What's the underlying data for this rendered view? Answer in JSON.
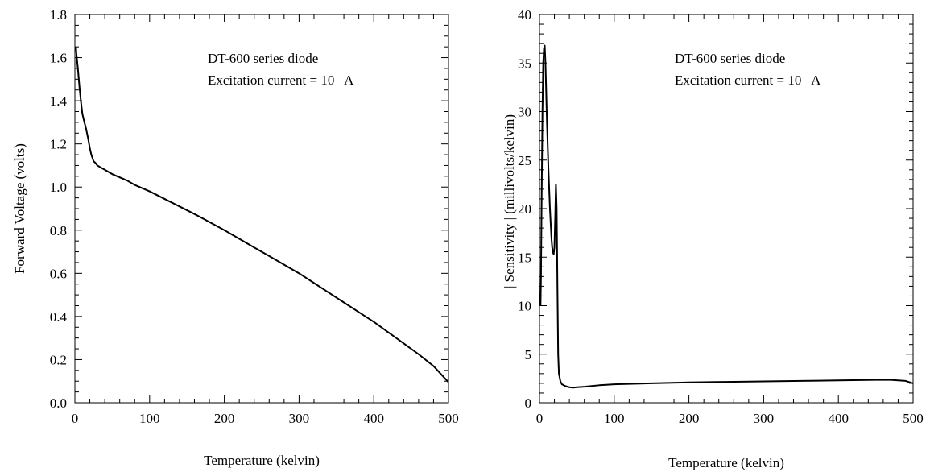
{
  "chart_data": [
    {
      "type": "line",
      "title": "",
      "xlabel": "Temperature (kelvin)",
      "ylabel": "Forward Voltage (volts)",
      "xlim": [
        0,
        500
      ],
      "ylim": [
        0,
        1.8
      ],
      "xticks": [
        "0",
        "100",
        "200",
        "300",
        "400",
        "500"
      ],
      "yticks": [
        "0.0",
        "0.2",
        "0.4",
        "0.6",
        "0.8",
        "1.0",
        "1.2",
        "1.4",
        "1.6",
        "1.8"
      ],
      "grid": false,
      "annotations": [
        "DT-600 series diode",
        "Excitation current = 10   A"
      ],
      "series": [
        {
          "x": [
            1.4,
            2,
            4,
            6,
            8,
            10,
            12,
            15,
            18,
            20,
            22,
            24,
            25,
            28,
            30,
            40,
            50,
            60,
            70,
            80,
            90,
            100,
            120,
            140,
            160,
            180,
            200,
            220,
            240,
            260,
            280,
            300,
            320,
            340,
            360,
            380,
            400,
            420,
            440,
            460,
            480,
            500
          ],
          "y": [
            1.65,
            1.62,
            1.55,
            1.47,
            1.4,
            1.34,
            1.31,
            1.27,
            1.22,
            1.18,
            1.15,
            1.13,
            1.12,
            1.11,
            1.1,
            1.08,
            1.06,
            1.045,
            1.03,
            1.01,
            0.995,
            0.98,
            0.945,
            0.91,
            0.875,
            0.838,
            0.8,
            0.76,
            0.72,
            0.68,
            0.64,
            0.6,
            0.555,
            0.51,
            0.465,
            0.42,
            0.375,
            0.325,
            0.275,
            0.225,
            0.17,
            0.095
          ]
        }
      ]
    },
    {
      "type": "line",
      "title": "",
      "xlabel": "Temperature (kelvin)",
      "ylabel": "| Sensitivity | (millivolts/kelvin)",
      "xlim": [
        0,
        500
      ],
      "ylim": [
        0,
        40
      ],
      "xticks": [
        "0",
        "100",
        "200",
        "300",
        "400",
        "500"
      ],
      "yticks": [
        "0",
        "5",
        "10",
        "15",
        "20",
        "25",
        "30",
        "35",
        "40"
      ],
      "grid": false,
      "annotations": [
        "DT-600 series diode",
        "Excitation current = 10   A"
      ],
      "series": [
        {
          "x": [
            1.4,
            2,
            3,
            4,
            5,
            6,
            7,
            8,
            9,
            10,
            12,
            14,
            16,
            17,
            18,
            19,
            20,
            21,
            22,
            23,
            24,
            25,
            26,
            28,
            30,
            35,
            40,
            45,
            50,
            60,
            80,
            100,
            150,
            200,
            250,
            300,
            350,
            400,
            450,
            470,
            490,
            500
          ],
          "y": [
            10,
            13,
            22,
            30,
            35,
            36.5,
            36.8,
            35,
            32,
            29,
            24,
            20,
            17,
            16,
            15.5,
            15.3,
            16,
            19,
            22.5,
            20,
            12,
            5,
            3,
            2.2,
            1.9,
            1.7,
            1.6,
            1.55,
            1.6,
            1.65,
            1.8,
            1.9,
            2.0,
            2.1,
            2.15,
            2.2,
            2.25,
            2.3,
            2.35,
            2.35,
            2.25,
            2.0
          ]
        }
      ]
    }
  ]
}
